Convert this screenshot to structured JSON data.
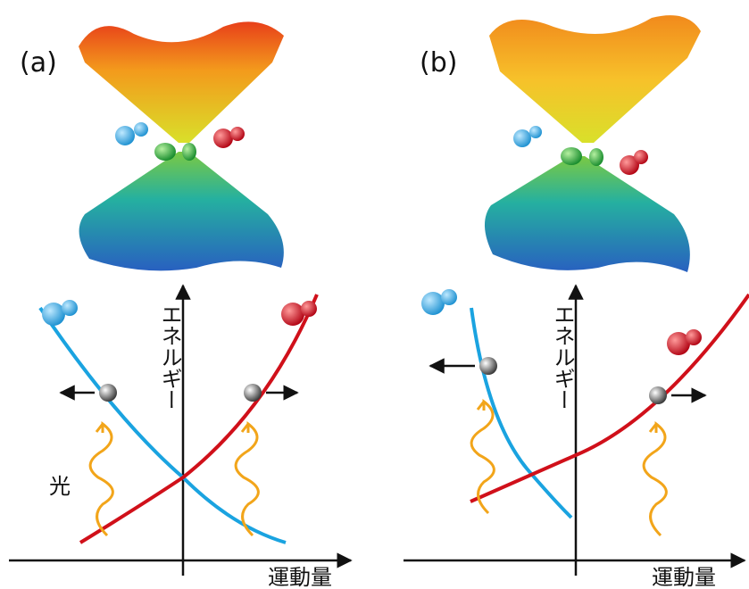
{
  "panels": [
    {
      "label": "(a)",
      "energy_axis": "エネルギー",
      "momentum_axis": "運動量",
      "light": "光"
    },
    {
      "label": "(b)",
      "energy_axis": "エネルギー",
      "momentum_axis": "運動量"
    }
  ]
}
